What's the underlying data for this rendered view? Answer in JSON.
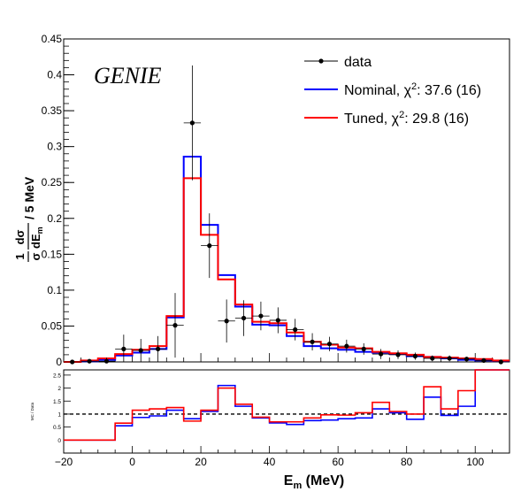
{
  "chart_data": [
    {
      "type": "line",
      "label": "GENIE",
      "xlabel": "E",
      "xlabel_sub": "m",
      "xlabel_unit": " (MeV)",
      "ylabel_parts": {
        "one": "1",
        "sigma": "σ",
        "dsigma": "dσ",
        "dE": "dE",
        "dE_sub": "m",
        "per": " / 5 MeV"
      },
      "xlim": [
        -20,
        110
      ],
      "ylim": [
        0,
        0.45
      ],
      "xticks": [
        -20,
        0,
        20,
        40,
        60,
        80,
        100
      ],
      "yticks": [
        0,
        0.05,
        0.1,
        0.15,
        0.2,
        0.25,
        0.3,
        0.35,
        0.4,
        0.45
      ],
      "ytick_labels": [
        "0",
        "0.05",
        "0.1",
        "0.15",
        "0.2",
        "0.25",
        "0.3",
        "0.35",
        "0.4",
        "0.45"
      ],
      "legend_position": "top-right",
      "colors": {
        "data": "#000000",
        "nominal": "#0000ff",
        "tuned": "#ff0000"
      },
      "bin_edges": [
        -20,
        -15,
        -10,
        -5,
        0,
        5,
        10,
        15,
        20,
        25,
        30,
        35,
        40,
        45,
        50,
        55,
        60,
        65,
        70,
        75,
        80,
        85,
        90,
        95,
        100,
        105,
        110
      ],
      "series": [
        {
          "key": "data",
          "name": "data",
          "x": [
            -17.5,
            -12.5,
            -7.5,
            -2.5,
            2.5,
            7.5,
            12.5,
            17.5,
            22.5,
            27.5,
            32.5,
            37.5,
            42.5,
            47.5,
            52.5,
            57.5,
            62.5,
            67.5,
            72.5,
            77.5,
            82.5,
            87.5,
            92.5,
            97.5,
            102.5,
            107.5
          ],
          "y": [
            0.0,
            0.001,
            0.001,
            0.018,
            0.016,
            0.018,
            0.051,
            0.333,
            0.162,
            0.057,
            0.061,
            0.064,
            0.058,
            0.045,
            0.028,
            0.025,
            0.022,
            0.018,
            0.011,
            0.01,
            0.008,
            0.005,
            0.005,
            0.004,
            0.002,
            0.0
          ],
          "yerr": [
            0.002,
            0.003,
            0.005,
            0.02,
            0.016,
            0.018,
            0.045,
            0.08,
            0.045,
            0.03,
            0.025,
            0.02,
            0.018,
            0.015,
            0.012,
            0.01,
            0.009,
            0.008,
            0.007,
            0.006,
            0.005,
            0.004,
            0.004,
            0.003,
            0.003,
            0.002
          ]
        },
        {
          "key": "nominal",
          "name": "Nominal, χ²: 37.6 (16)",
          "name_main": "Nominal, χ",
          "name_sup": "2",
          "name_tail": ": 37.6 (16)",
          "values": [
            0.0,
            0.001,
            0.003,
            0.009,
            0.013,
            0.018,
            0.062,
            0.286,
            0.191,
            0.121,
            0.077,
            0.052,
            0.051,
            0.036,
            0.022,
            0.019,
            0.017,
            0.014,
            0.013,
            0.011,
            0.008,
            0.007,
            0.005,
            0.003,
            0.002,
            0.001
          ]
        },
        {
          "key": "tuned",
          "name": "Tuned, χ²: 29.8 (16)",
          "name_main": "Tuned, χ",
          "name_sup": "2",
          "name_tail": ": 29.8 (16)",
          "values": [
            0.0,
            0.002,
            0.005,
            0.011,
            0.017,
            0.022,
            0.064,
            0.256,
            0.177,
            0.115,
            0.08,
            0.056,
            0.054,
            0.041,
            0.028,
            0.024,
            0.02,
            0.019,
            0.014,
            0.012,
            0.01,
            0.007,
            0.006,
            0.005,
            0.004,
            0.002
          ]
        }
      ]
    },
    {
      "type": "line",
      "ylabel": "MC / Data",
      "xlim": [
        -20,
        110
      ],
      "ylim": [
        -0.5,
        2.7
      ],
      "yticks": [
        0,
        0.5,
        1,
        1.5,
        2,
        2.5
      ],
      "ytick_labels": [
        "0",
        "0.5",
        "1",
        "1.5",
        "2",
        "2.5"
      ],
      "xticks": [
        -20,
        0,
        20,
        40,
        60,
        80,
        100
      ],
      "reference_line": 1,
      "bin_edges": [
        -20,
        -15,
        -10,
        -5,
        0,
        5,
        10,
        15,
        20,
        25,
        30,
        35,
        40,
        45,
        50,
        55,
        60,
        65,
        70,
        75,
        80,
        85,
        90,
        95,
        100,
        105,
        110
      ],
      "series": [
        {
          "key": "nominal",
          "values": [
            0.0,
            0.0,
            0.0,
            0.55,
            0.87,
            0.93,
            1.15,
            0.82,
            1.1,
            2.1,
            1.3,
            0.85,
            0.66,
            0.6,
            0.75,
            0.77,
            0.82,
            0.85,
            1.2,
            1.05,
            0.8,
            1.65,
            0.95,
            1.3,
            2.7,
            2.7
          ]
        },
        {
          "key": "tuned",
          "values": [
            0.0,
            0.0,
            0.0,
            0.65,
            1.15,
            1.2,
            1.25,
            0.73,
            1.15,
            2.0,
            1.38,
            0.88,
            0.7,
            0.7,
            0.85,
            0.97,
            0.96,
            1.05,
            1.45,
            1.1,
            1.0,
            2.05,
            1.2,
            1.9,
            2.7,
            2.7
          ]
        }
      ]
    }
  ]
}
